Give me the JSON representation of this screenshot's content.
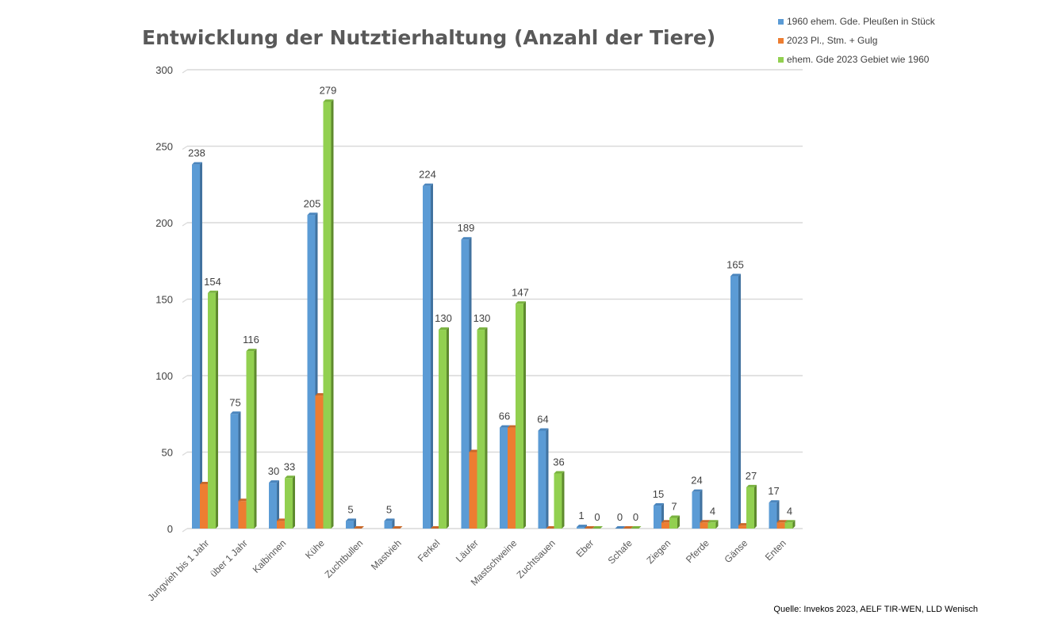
{
  "chart_data": {
    "type": "bar",
    "title": "Entwicklung der Nutztierhaltung (Anzahl der Tiere)",
    "xlabel": "",
    "ylabel": "",
    "ylim": [
      0,
      300
    ],
    "yticks": [
      0,
      50,
      100,
      150,
      200,
      250,
      300
    ],
    "grid": true,
    "legend_position": "top-right",
    "categories": [
      "Jungvieh bis 1 Jahr",
      "über 1 Jahr",
      "Kalbinnen",
      "Kühe",
      "Zuchtbullen",
      "Mastvieh",
      "Ferkel",
      "Läufer",
      "Mastschweine",
      "Zuchtsauen",
      "Eber",
      "Schafe",
      "Ziegen",
      "Pferde",
      "Gänse",
      "Enten"
    ],
    "series": [
      {
        "name": "1960 ehem. Gde. Pleußen in Stück",
        "color": "#5B9BD5",
        "side": "#41729F",
        "top": "#4A85BD",
        "values": [
          238,
          75,
          30,
          205,
          5,
          5,
          224,
          189,
          66,
          64,
          1,
          0,
          15,
          24,
          165,
          17
        ],
        "labeled": true
      },
      {
        "name": "2023 Pl., Stm. + Gulg",
        "color": "#ED7D31",
        "side": "#B85F22",
        "top": "#C9692A",
        "values": [
          29,
          18,
          5,
          87,
          0,
          0,
          0,
          50,
          66,
          0,
          0,
          0,
          4,
          4,
          2,
          4
        ],
        "labeled": false
      },
      {
        "name": "ehem. Gde 2023 Gebiet wie 1960",
        "color": "#92D050",
        "side": "#5E8A2E",
        "top": "#7AB33F",
        "values": [
          154,
          116,
          33,
          279,
          null,
          null,
          130,
          130,
          147,
          36,
          0,
          0,
          7,
          4,
          27,
          4
        ],
        "labeled": true
      }
    ],
    "source": "Quelle: Invekos 2023, AELF TIR-WEN, LLD Wenisch"
  }
}
